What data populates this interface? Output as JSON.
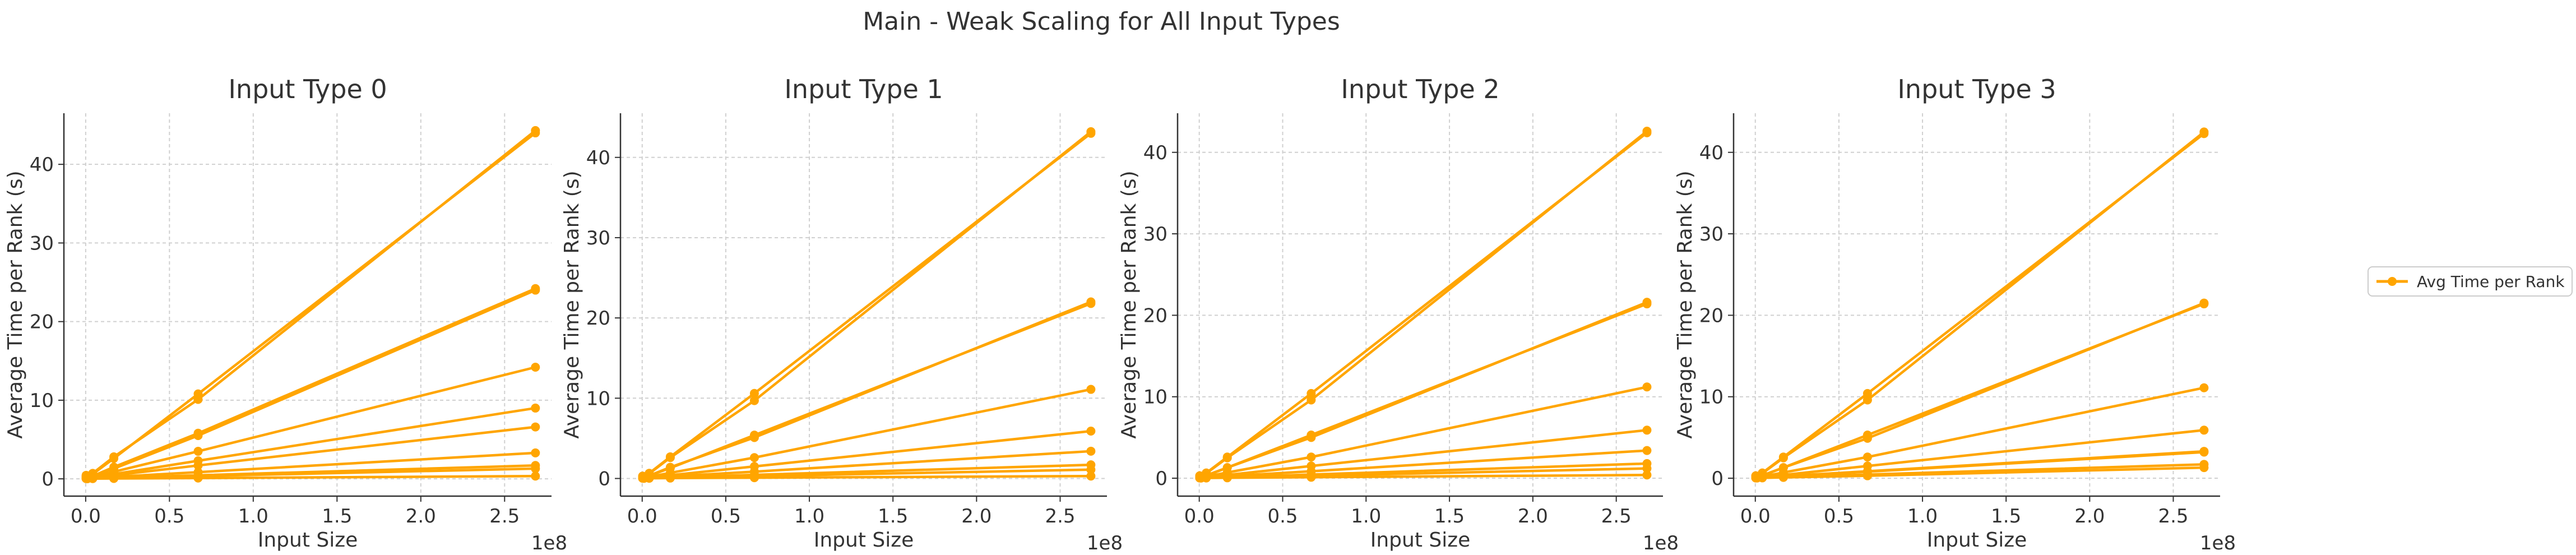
{
  "figure": {
    "suptitle": "Main - Weak Scaling for All Input Types",
    "legend": {
      "label": "Avg Time per Rank",
      "placement": "right"
    },
    "line_color": "#FFA500"
  },
  "chart_data": [
    {
      "type": "line",
      "title": "Input Type 0",
      "xlabel": "Input Size",
      "ylabel": "Average Time per Rank (s)",
      "x_offset_label": "1e8",
      "xlim": [
        -0.13,
        2.78
      ],
      "ylim": [
        -2.2,
        46.5
      ],
      "xticks": [
        0.0,
        0.5,
        1.0,
        1.5,
        2.0,
        2.5
      ],
      "xtick_labels": [
        "0.0",
        "0.5",
        "1.0",
        "1.5",
        "2.0",
        "2.5"
      ],
      "yticks": [
        0,
        10,
        20,
        30,
        40
      ],
      "ytick_labels": [
        "0",
        "10",
        "20",
        "30",
        "40"
      ],
      "grid": true,
      "x": [
        0.00262,
        0.0105,
        0.042,
        0.168,
        0.671,
        2.684
      ],
      "series": [
        {
          "values": [
            0.45,
            0.25,
            0.7,
            2.8,
            10.1,
            44.3
          ]
        },
        {
          "values": [
            0.35,
            0.2,
            0.6,
            2.6,
            10.8,
            44.0
          ]
        },
        {
          "values": [
            0.25,
            0.15,
            0.35,
            1.5,
            5.8,
            24.2
          ]
        },
        {
          "values": [
            0.2,
            0.15,
            0.3,
            1.3,
            5.5,
            24.0
          ]
        },
        {
          "values": [
            0.15,
            0.1,
            0.2,
            0.9,
            3.5,
            14.2
          ]
        },
        {
          "values": [
            0.1,
            0.1,
            0.15,
            0.6,
            2.3,
            9.0
          ]
        },
        {
          "values": [
            0.1,
            0.05,
            0.1,
            0.45,
            1.7,
            6.6
          ]
        },
        {
          "values": [
            0.05,
            0.05,
            0.1,
            0.25,
            0.85,
            3.3
          ]
        },
        {
          "values": [
            0.05,
            0.03,
            0.05,
            0.12,
            0.45,
            1.7
          ]
        },
        {
          "values": [
            0.05,
            0.03,
            0.05,
            0.1,
            0.35,
            1.3
          ]
        },
        {
          "values": [
            0.03,
            0.02,
            0.03,
            0.05,
            0.1,
            0.35
          ]
        }
      ]
    },
    {
      "type": "line",
      "title": "Input Type 1",
      "xlabel": "Input Size",
      "ylabel": "Average Time per Rank (s)",
      "x_offset_label": "1e8",
      "xlim": [
        -0.13,
        2.78
      ],
      "ylim": [
        -2.2,
        45.5
      ],
      "xticks": [
        0.0,
        0.5,
        1.0,
        1.5,
        2.0,
        2.5
      ],
      "xtick_labels": [
        "0.0",
        "0.5",
        "1.0",
        "1.5",
        "2.0",
        "2.5"
      ],
      "yticks": [
        0,
        10,
        20,
        30,
        40
      ],
      "ytick_labels": [
        "0",
        "10",
        "20",
        "30",
        "40"
      ],
      "grid": true,
      "x": [
        0.00262,
        0.0105,
        0.042,
        0.168,
        0.671,
        2.684
      ],
      "series": [
        {
          "values": [
            0.3,
            0.2,
            0.6,
            2.6,
            9.7,
            43.2
          ]
        },
        {
          "values": [
            0.25,
            0.2,
            0.65,
            2.7,
            10.6,
            43.0
          ]
        },
        {
          "values": [
            0.2,
            0.15,
            0.35,
            1.4,
            5.1,
            22.0
          ]
        },
        {
          "values": [
            0.2,
            0.1,
            0.35,
            1.3,
            5.4,
            21.8
          ]
        },
        {
          "values": [
            0.1,
            0.1,
            0.2,
            0.7,
            2.6,
            11.1
          ]
        },
        {
          "values": [
            0.1,
            0.05,
            0.1,
            0.4,
            1.5,
            5.9
          ]
        },
        {
          "values": [
            0.05,
            0.05,
            0.1,
            0.25,
            0.85,
            3.4
          ]
        },
        {
          "values": [
            0.05,
            0.03,
            0.05,
            0.12,
            0.45,
            1.7
          ]
        },
        {
          "values": [
            0.03,
            0.03,
            0.05,
            0.1,
            0.3,
            1.1
          ]
        },
        {
          "values": [
            0.03,
            0.02,
            0.03,
            0.05,
            0.1,
            0.3
          ]
        }
      ]
    },
    {
      "type": "line",
      "title": "Input Type 2",
      "xlabel": "Input Size",
      "ylabel": "Average Time per Rank (s)",
      "x_offset_label": "1e8",
      "xlim": [
        -0.13,
        2.78
      ],
      "ylim": [
        -2.2,
        44.8
      ],
      "xticks": [
        0.0,
        0.5,
        1.0,
        1.5,
        2.0,
        2.5
      ],
      "xtick_labels": [
        "0.0",
        "0.5",
        "1.0",
        "1.5",
        "2.0",
        "2.5"
      ],
      "yticks": [
        0,
        10,
        20,
        30,
        40
      ],
      "ytick_labels": [
        "0",
        "10",
        "20",
        "30",
        "40"
      ],
      "grid": true,
      "x": [
        0.00262,
        0.0105,
        0.042,
        0.168,
        0.671,
        2.684
      ],
      "series": [
        {
          "values": [
            0.3,
            0.2,
            0.6,
            2.5,
            9.6,
            42.6
          ]
        },
        {
          "values": [
            0.25,
            0.2,
            0.65,
            2.6,
            10.4,
            42.4
          ]
        },
        {
          "values": [
            0.2,
            0.15,
            0.35,
            1.3,
            5.0,
            21.6
          ]
        },
        {
          "values": [
            0.2,
            0.1,
            0.3,
            1.3,
            5.3,
            21.4
          ]
        },
        {
          "values": [
            0.1,
            0.1,
            0.2,
            0.7,
            2.6,
            11.2
          ]
        },
        {
          "values": [
            0.1,
            0.05,
            0.1,
            0.4,
            1.5,
            5.9
          ]
        },
        {
          "values": [
            0.05,
            0.05,
            0.1,
            0.25,
            0.85,
            3.4
          ]
        },
        {
          "values": [
            0.05,
            0.03,
            0.05,
            0.12,
            0.45,
            1.8
          ]
        },
        {
          "values": [
            0.03,
            0.03,
            0.05,
            0.1,
            0.3,
            1.2
          ]
        },
        {
          "values": [
            0.03,
            0.02,
            0.03,
            0.05,
            0.12,
            0.4
          ]
        }
      ]
    },
    {
      "type": "line",
      "title": "Input Type 3",
      "xlabel": "Input Size",
      "ylabel": "Average Time per Rank (s)",
      "x_offset_label": "1e8",
      "xlim": [
        -0.13,
        2.78
      ],
      "ylim": [
        -2.2,
        44.8
      ],
      "xticks": [
        0.0,
        0.5,
        1.0,
        1.5,
        2.0,
        2.5
      ],
      "xtick_labels": [
        "0.0",
        "0.5",
        "1.0",
        "1.5",
        "2.0",
        "2.5"
      ],
      "yticks": [
        0,
        10,
        20,
        30,
        40
      ],
      "ytick_labels": [
        "0",
        "10",
        "20",
        "30",
        "40"
      ],
      "grid": true,
      "x": [
        0.00262,
        0.0105,
        0.042,
        0.168,
        0.671,
        2.684
      ],
      "series": [
        {
          "values": [
            0.3,
            0.2,
            0.6,
            2.5,
            9.6,
            42.5
          ]
        },
        {
          "values": [
            0.25,
            0.2,
            0.65,
            2.6,
            10.4,
            42.3
          ]
        },
        {
          "values": [
            0.2,
            0.15,
            0.35,
            1.3,
            4.9,
            21.5
          ]
        },
        {
          "values": [
            0.2,
            0.1,
            0.3,
            1.3,
            5.3,
            21.4
          ]
        },
        {
          "values": [
            0.1,
            0.1,
            0.2,
            0.7,
            2.6,
            11.1
          ]
        },
        {
          "values": [
            0.1,
            0.05,
            0.1,
            0.4,
            1.5,
            5.9
          ]
        },
        {
          "values": [
            0.05,
            0.05,
            0.1,
            0.25,
            0.85,
            3.3
          ]
        },
        {
          "values": [
            0.05,
            0.05,
            0.1,
            0.2,
            0.8,
            3.2
          ]
        },
        {
          "values": [
            0.05,
            0.03,
            0.05,
            0.12,
            0.45,
            1.7
          ]
        },
        {
          "values": [
            0.03,
            0.03,
            0.05,
            0.1,
            0.3,
            1.3
          ]
        }
      ]
    }
  ]
}
